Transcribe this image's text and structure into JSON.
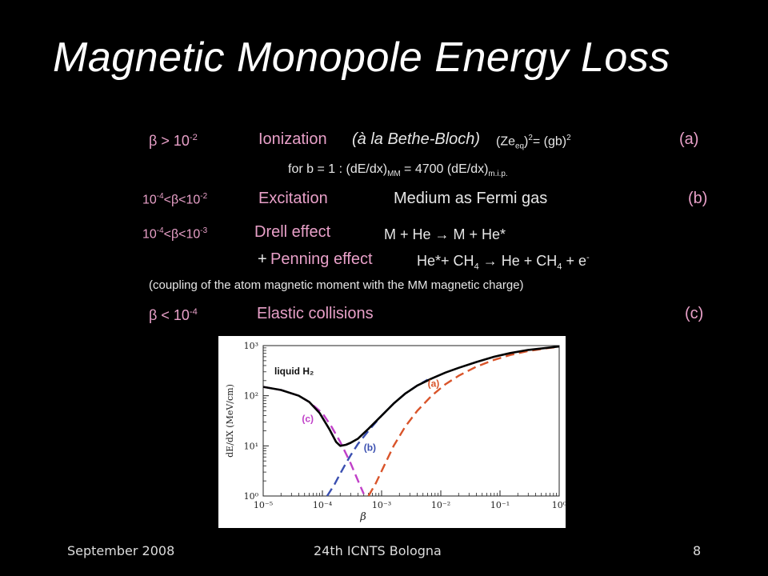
{
  "slide": {
    "title": "Magnetic Monopole Energy Loss",
    "rows": {
      "r1_beta": "β > 10",
      "r1_beta_exp": "-2",
      "r1_mech": "Ionization",
      "r1_paren": "(à la Bethe-Bloch)",
      "r1_eq_a": "(Ze",
      "r1_eq_sub": "eq",
      "r1_eq_b": ")",
      "r1_eq_sup": "2",
      "r1_eq_c": "= (gb)",
      "r1_eq_sup2": "2",
      "r1_label": "(a)",
      "r2_a": "for b = 1  :  (dE/dx)",
      "r2_sub1": "MM",
      "r2_b": " = 4700 (dE/dx)",
      "r2_sub2": "m.i.p.",
      "r3_a": "10",
      "r3_exp1": "-4",
      "r3_b": "<β<10",
      "r3_exp2": "-2",
      "r3_mech": "Excitation",
      "r3_desc": "Medium as Fermi gas",
      "r3_label": "(b)",
      "r4_a": "10",
      "r4_exp1": "-4",
      "r4_b": "<β<10",
      "r4_exp2": "-3",
      "r4_mech": "Drell effect",
      "r4_desc": "M + He  →  M + He*",
      "r5_plus": "+",
      "r5_mech": "Penning effect",
      "r5_a": "He*+ CH",
      "r5_sub1": "4",
      "r5_b": "  →  He + CH",
      "r5_sub2": "4",
      "r5_c": " + e",
      "r5_sup": "-",
      "r6_note": "(coupling of the atom magnetic moment with the MM magnetic charge)",
      "r7_beta": "β < 10",
      "r7_exp": "-4",
      "r7_mech": "Elastic collisions",
      "r7_label": "(c)"
    },
    "footer": {
      "date": "September 2008",
      "event": "24th ICNTS  Bologna",
      "page": "8"
    }
  },
  "colors": {
    "accent_pink": "#e8a0c8",
    "curve_a": "#d9542a",
    "curve_b": "#3a4fb0",
    "curve_c": "#c040c8",
    "total": "#000000"
  },
  "chart_data": {
    "type": "line",
    "scale": "log-log",
    "xlabel": "β",
    "ylabel": "dE/dX (MeV/cm)",
    "xlim": [
      1e-05,
      1
    ],
    "ylim": [
      1,
      1000
    ],
    "x_ticks": [
      "10⁻⁵",
      "10⁻⁴",
      "10⁻³",
      "10⁻²",
      "10⁻¹",
      "10⁰"
    ],
    "y_ticks": [
      "10⁰",
      "10¹",
      "10²",
      "10³"
    ],
    "annotation": "liquid H₂",
    "series": [
      {
        "name": "(a)",
        "style": "dashed",
        "color": "#d9542a",
        "x": [
          0.0006,
          0.0008,
          0.0011,
          0.0016,
          0.0025,
          0.004,
          0.007,
          0.012,
          0.02,
          0.04,
          0.08,
          0.15,
          0.3,
          0.6,
          1.0
        ],
        "y": [
          1.0,
          1.8,
          4.0,
          10,
          24,
          50,
          100,
          170,
          250,
          380,
          520,
          650,
          780,
          880,
          950
        ]
      },
      {
        "name": "(b)",
        "style": "dashed",
        "color": "#3a4fb0",
        "x": [
          0.00012,
          0.00016,
          0.0002,
          0.00025,
          0.0003,
          0.0004,
          0.0006,
          0.001,
          0.0016,
          0.0025,
          0.004,
          0.006
        ],
        "y": [
          1.0,
          1.7,
          2.8,
          4.5,
          6.5,
          11,
          20,
          40,
          70,
          110,
          160,
          210
        ]
      },
      {
        "name": "(c)",
        "style": "dashed",
        "color": "#c040c8",
        "x": [
          1e-05,
          2e-05,
          4e-05,
          6e-05,
          0.0001,
          0.00014,
          0.0002,
          0.0003,
          0.0004,
          0.0005
        ],
        "y": [
          150,
          130,
          100,
          75,
          45,
          25,
          12,
          4.5,
          2.0,
          1.1
        ]
      },
      {
        "name": "",
        "style": "solid",
        "color": "#000000",
        "x": [
          1e-05,
          2e-05,
          4e-05,
          6e-05,
          9e-05,
          0.00013,
          0.00017,
          0.0002,
          0.00025,
          0.0003,
          0.0004,
          0.0006,
          0.001,
          0.0016,
          0.0025,
          0.004,
          0.007,
          0.012,
          0.02,
          0.04,
          0.08,
          0.15,
          0.3,
          0.6,
          1.0
        ],
        "y": [
          150,
          130,
          100,
          75,
          45,
          22,
          12,
          10,
          10.5,
          11.5,
          14,
          22,
          40,
          70,
          110,
          160,
          220,
          290,
          360,
          470,
          600,
          710,
          820,
          900,
          960
        ]
      }
    ]
  }
}
